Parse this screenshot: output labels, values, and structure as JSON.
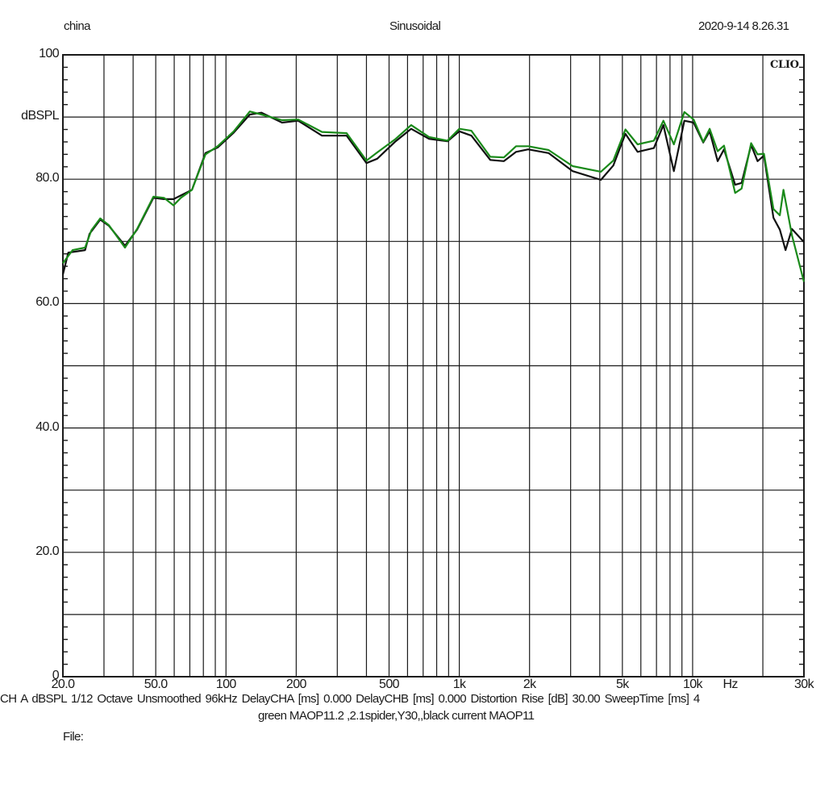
{
  "header": {
    "left": "china",
    "center": "Sinusoidal",
    "right": "2020-9-14 8.26.31",
    "logo": "CLIO"
  },
  "footer": {
    "settings": "CH A   dBSPL    1/12 Octave   Unsmoothed   96kHz   DelayCHA [ms] 0.000    DelayCHB [ms] 0.000    Distortion Rise [dB] 30.00    SweepTime [ms] 4",
    "comment": "green MAOP11.2 ,2.1spider,Y30,,black current MAOP11",
    "file_label": "File:"
  },
  "colors": {
    "grid": "#1a1a1a",
    "black_series": "#111111",
    "green_series": "#1a8a1a"
  },
  "chart_data": {
    "type": "line",
    "title": "Sinusoidal",
    "xlabel": "Hz",
    "ylabel": "dBSPL",
    "xscale": "log",
    "xlim": [
      20,
      30000
    ],
    "ylim": [
      0,
      100
    ],
    "grid": true,
    "y_ticks": [
      {
        "value": 100,
        "label": "100"
      },
      {
        "value": 90,
        "label": "dBSPL"
      },
      {
        "value": 80,
        "label": "80.0"
      },
      {
        "value": 60,
        "label": "60.0"
      },
      {
        "value": 40,
        "label": "40.0"
      },
      {
        "value": 20,
        "label": "20.0"
      },
      {
        "value": 0,
        "label": "0"
      }
    ],
    "x_ticks": [
      {
        "value": 20,
        "label": "20.0"
      },
      {
        "value": 50,
        "label": "50.0"
      },
      {
        "value": 100,
        "label": "100"
      },
      {
        "value": 200,
        "label": "200"
      },
      {
        "value": 500,
        "label": "500"
      },
      {
        "value": 1000,
        "label": "1k"
      },
      {
        "value": 2000,
        "label": "2k"
      },
      {
        "value": 5000,
        "label": "5k"
      },
      {
        "value": 10000,
        "label": "10k"
      },
      {
        "value": 14500,
        "label": "Hz"
      },
      {
        "value": 30000,
        "label": "30k"
      }
    ],
    "x_gridlines": [
      30,
      40,
      50,
      60,
      70,
      80,
      90,
      100,
      200,
      300,
      400,
      500,
      600,
      700,
      800,
      900,
      1000,
      2000,
      3000,
      4000,
      5000,
      6000,
      7000,
      8000,
      9000,
      10000,
      20000
    ],
    "y_gridlines": [
      10,
      20,
      30,
      40,
      50,
      60,
      70,
      80,
      90
    ],
    "series": [
      {
        "name": "black current MAOP11",
        "color": "#111111",
        "points": [
          [
            20,
            64.7
          ],
          [
            21.1,
            68.2
          ],
          [
            23,
            68.4
          ],
          [
            24.9,
            68.6
          ],
          [
            26,
            71.2
          ],
          [
            28.9,
            73.5
          ],
          [
            31.5,
            72.5
          ],
          [
            36.9,
            69.3
          ],
          [
            41.6,
            71.9
          ],
          [
            48.9,
            77.0
          ],
          [
            54.2,
            76.8
          ],
          [
            59.6,
            76.8
          ],
          [
            71.5,
            78.3
          ],
          [
            81.7,
            84.2
          ],
          [
            92.1,
            85.1
          ],
          [
            108,
            87.5
          ],
          [
            126.5,
            90.4
          ],
          [
            142,
            90.7
          ],
          [
            174,
            89.1
          ],
          [
            204,
            89.4
          ],
          [
            258,
            87.0
          ],
          [
            329,
            87.0
          ],
          [
            400,
            82.6
          ],
          [
            445,
            83.3
          ],
          [
            530,
            86.0
          ],
          [
            622,
            88.1
          ],
          [
            741,
            86.5
          ],
          [
            890,
            86.1
          ],
          [
            1000,
            87.7
          ],
          [
            1127,
            87.0
          ],
          [
            1357,
            83.1
          ],
          [
            1553,
            82.9
          ],
          [
            1751,
            84.4
          ],
          [
            1973,
            84.8
          ],
          [
            2413,
            84.2
          ],
          [
            3062,
            81.3
          ],
          [
            4046,
            79.9
          ],
          [
            4571,
            82.2
          ],
          [
            5153,
            87.3
          ],
          [
            5808,
            84.4
          ],
          [
            6823,
            85.0
          ],
          [
            7496,
            88.7
          ],
          [
            8312,
            81.3
          ],
          [
            9216,
            89.4
          ],
          [
            10100,
            89.1
          ],
          [
            11100,
            85.9
          ],
          [
            11830,
            87.7
          ],
          [
            12800,
            82.9
          ],
          [
            13630,
            84.8
          ],
          [
            15220,
            79.1
          ],
          [
            16220,
            79.4
          ],
          [
            17820,
            85.5
          ],
          [
            18990,
            82.9
          ],
          [
            20220,
            83.8
          ],
          [
            22200,
            73.8
          ],
          [
            23640,
            71.9
          ],
          [
            25020,
            68.6
          ],
          [
            26640,
            72.0
          ],
          [
            30000,
            69.9
          ]
        ]
      },
      {
        "name": "green MAOP11.2 ,2.1spider,Y30",
        "color": "#1a8a1a",
        "points": [
          [
            20,
            66.5
          ],
          [
            22,
            68.6
          ],
          [
            24.9,
            69.0
          ],
          [
            26.5,
            71.8
          ],
          [
            28.9,
            73.7
          ],
          [
            31.5,
            72.6
          ],
          [
            36.9,
            69.0
          ],
          [
            41.6,
            72.0
          ],
          [
            48.9,
            77.2
          ],
          [
            54.2,
            77.0
          ],
          [
            59.6,
            75.8
          ],
          [
            64,
            77.0
          ],
          [
            71.5,
            78.3
          ],
          [
            81.7,
            84.0
          ],
          [
            92.1,
            85.3
          ],
          [
            108,
            87.7
          ],
          [
            126.5,
            90.9
          ],
          [
            142,
            90.4
          ],
          [
            174,
            89.5
          ],
          [
            204,
            89.6
          ],
          [
            258,
            87.6
          ],
          [
            329,
            87.4
          ],
          [
            400,
            83.0
          ],
          [
            445,
            84.3
          ],
          [
            530,
            86.4
          ],
          [
            622,
            88.7
          ],
          [
            741,
            86.8
          ],
          [
            890,
            86.2
          ],
          [
            1000,
            88.1
          ],
          [
            1127,
            87.8
          ],
          [
            1357,
            83.6
          ],
          [
            1553,
            83.5
          ],
          [
            1751,
            85.3
          ],
          [
            1973,
            85.3
          ],
          [
            2413,
            84.7
          ],
          [
            3062,
            82.1
          ],
          [
            4046,
            81.2
          ],
          [
            4571,
            83.0
          ],
          [
            5153,
            88.0
          ],
          [
            5808,
            85.6
          ],
          [
            6823,
            86.2
          ],
          [
            7496,
            89.4
          ],
          [
            8312,
            85.6
          ],
          [
            9216,
            90.8
          ],
          [
            10100,
            89.6
          ],
          [
            11100,
            86.0
          ],
          [
            11830,
            88.1
          ],
          [
            12800,
            84.5
          ],
          [
            13630,
            85.4
          ],
          [
            15220,
            77.8
          ],
          [
            16220,
            78.5
          ],
          [
            17820,
            85.8
          ],
          [
            18990,
            84.0
          ],
          [
            20220,
            84.1
          ],
          [
            22200,
            75.2
          ],
          [
            23640,
            74.2
          ],
          [
            24500,
            78.3
          ],
          [
            26640,
            71.0
          ],
          [
            30000,
            63.5
          ]
        ]
      }
    ]
  }
}
